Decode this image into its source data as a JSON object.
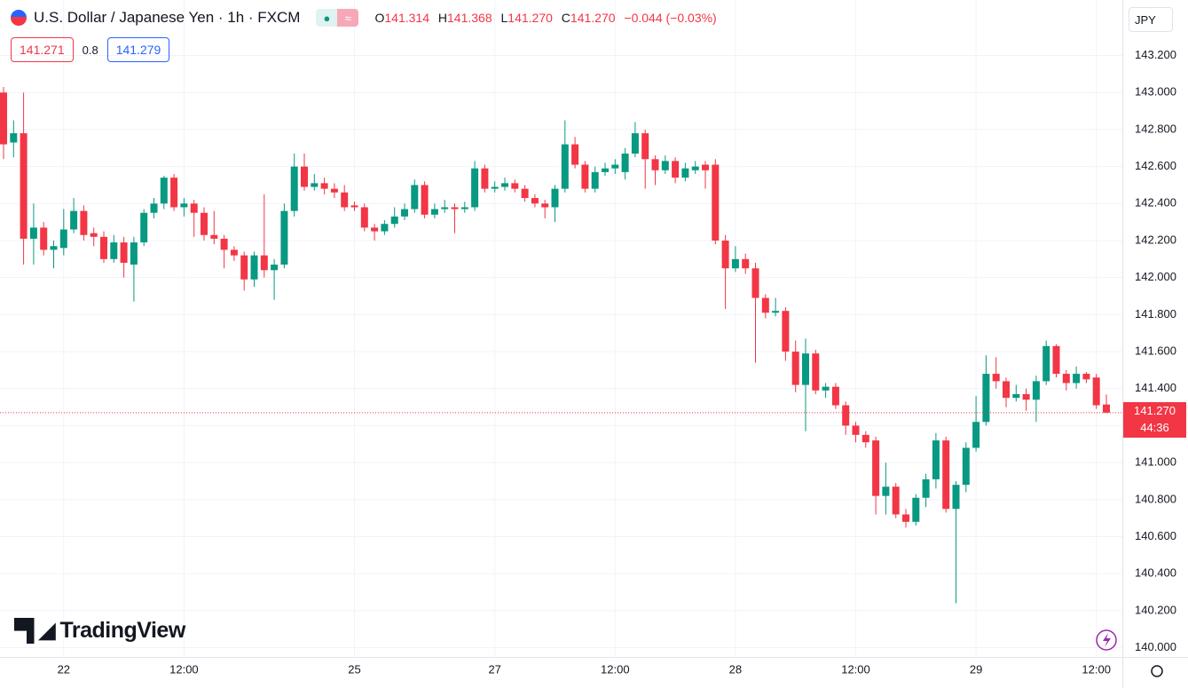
{
  "chart_data": {
    "type": "candlestick",
    "title": "U.S. Dollar / Japanese Yen · 1h · FXCM",
    "quote_labels": [
      "O",
      "H",
      "L",
      "C"
    ],
    "quote": [
      "141.314",
      "141.368",
      "141.270",
      "141.270"
    ],
    "change": "−0.044 (−0.03%)",
    "bid": "141.271",
    "spread": "0.8",
    "ask": "141.279",
    "currency": "JPY",
    "logo": "TradingView",
    "last_price_label": "141.270",
    "countdown": "44:36",
    "up_color": "#089981",
    "down_color": "#f23645",
    "grid": true,
    "ylim": [
      139.95,
      143.5
    ],
    "yticks": [
      {
        "value": 140.0,
        "label": "140.000"
      },
      {
        "value": 140.2,
        "label": "140.200"
      },
      {
        "value": 140.4,
        "label": "140.400"
      },
      {
        "value": 140.6,
        "label": "140.600"
      },
      {
        "value": 140.8,
        "label": "140.800"
      },
      {
        "value": 141.0,
        "label": "141.000"
      },
      {
        "value": 141.2,
        "label": "141.200"
      },
      {
        "value": 141.4,
        "label": "141.400"
      },
      {
        "value": 141.6,
        "label": "141.600"
      },
      {
        "value": 141.8,
        "label": "141.800"
      },
      {
        "value": 142.0,
        "label": "142.000"
      },
      {
        "value": 142.2,
        "label": "142.200"
      },
      {
        "value": 142.4,
        "label": "142.400"
      },
      {
        "value": 142.6,
        "label": "142.600"
      },
      {
        "value": 142.8,
        "label": "142.800"
      },
      {
        "value": 143.0,
        "label": "143.000"
      },
      {
        "value": 143.2,
        "label": "143.200"
      }
    ],
    "categories": [
      null,
      null,
      null,
      null,
      null,
      null,
      "22",
      null,
      null,
      null,
      null,
      null,
      null,
      null,
      null,
      null,
      null,
      null,
      "12:00",
      null,
      null,
      null,
      null,
      null,
      null,
      null,
      null,
      null,
      null,
      null,
      null,
      null,
      null,
      null,
      null,
      "25",
      null,
      null,
      null,
      null,
      null,
      null,
      null,
      null,
      null,
      null,
      null,
      null,
      null,
      "27",
      null,
      null,
      null,
      null,
      null,
      null,
      null,
      null,
      null,
      null,
      null,
      "12:00",
      null,
      null,
      null,
      null,
      null,
      null,
      null,
      null,
      null,
      null,
      null,
      "28",
      null,
      null,
      null,
      null,
      null,
      null,
      null,
      null,
      null,
      null,
      null,
      "12:00",
      null,
      null,
      null,
      null,
      null,
      null,
      null,
      null,
      null,
      null,
      null,
      "29",
      null,
      null,
      null,
      null,
      null,
      null,
      null,
      null,
      null,
      null,
      null,
      "12:00",
      null
    ],
    "open": [
      143.0,
      142.73,
      142.78,
      142.21,
      142.27,
      142.15,
      142.16,
      142.26,
      142.36,
      142.24,
      142.22,
      142.1,
      142.19,
      142.07,
      142.19,
      142.35,
      142.4,
      142.54,
      142.38,
      142.4,
      142.35,
      142.23,
      142.21,
      142.15,
      142.12,
      141.99,
      142.12,
      142.04,
      142.07,
      142.36,
      142.6,
      142.49,
      142.51,
      142.48,
      142.46,
      142.39,
      142.38,
      142.27,
      142.25,
      142.29,
      142.33,
      142.37,
      142.5,
      142.34,
      142.37,
      142.38,
      142.37,
      142.38,
      142.59,
      142.48,
      142.49,
      142.51,
      142.48,
      142.43,
      142.4,
      142.38,
      142.48,
      142.72,
      142.61,
      142.48,
      142.57,
      142.59,
      142.57,
      142.67,
      142.78,
      142.64,
      142.58,
      142.63,
      142.54,
      142.58,
      142.61,
      142.61,
      142.2,
      142.05,
      142.1,
      142.05,
      141.89,
      141.81,
      141.82,
      141.6,
      141.42,
      141.59,
      141.39,
      141.41,
      141.31,
      141.2,
      141.15,
      141.12,
      140.82,
      140.87,
      140.72,
      140.68,
      140.81,
      140.91,
      141.12,
      140.75,
      140.88,
      141.08,
      141.22,
      141.48,
      141.44,
      141.35,
      141.37,
      141.34,
      141.44,
      141.63,
      141.48,
      141.43,
      141.48,
      141.46,
      141.314
    ],
    "high": [
      143.03,
      142.85,
      143.0,
      142.4,
      142.3,
      142.2,
      142.37,
      142.43,
      142.39,
      142.27,
      142.25,
      142.23,
      142.22,
      142.22,
      142.37,
      142.43,
      142.55,
      142.56,
      142.43,
      142.42,
      142.38,
      142.36,
      142.23,
      142.17,
      142.14,
      142.14,
      142.45,
      142.1,
      142.4,
      142.67,
      142.67,
      142.56,
      142.54,
      142.51,
      142.5,
      142.41,
      142.4,
      142.29,
      142.31,
      142.38,
      142.4,
      142.53,
      142.52,
      142.4,
      142.42,
      142.4,
      142.41,
      142.63,
      142.61,
      142.52,
      142.54,
      142.53,
      142.5,
      142.45,
      142.42,
      142.5,
      142.85,
      142.76,
      142.63,
      142.6,
      142.62,
      142.64,
      142.7,
      142.84,
      142.8,
      142.66,
      142.66,
      142.65,
      142.62,
      142.63,
      142.63,
      142.64,
      142.23,
      142.17,
      142.13,
      142.08,
      141.91,
      141.89,
      141.84,
      141.66,
      141.67,
      141.61,
      141.43,
      141.43,
      141.33,
      141.22,
      141.17,
      141.14,
      141.0,
      140.89,
      140.75,
      140.83,
      140.94,
      141.16,
      141.14,
      140.9,
      141.11,
      141.36,
      141.58,
      141.57,
      141.46,
      141.42,
      141.4,
      141.47,
      141.66,
      141.64,
      141.5,
      141.52,
      141.49,
      141.48,
      141.368
    ],
    "low": [
      142.64,
      142.65,
      142.07,
      142.07,
      142.12,
      142.05,
      142.12,
      142.24,
      142.2,
      142.17,
      142.08,
      142.08,
      142.0,
      141.87,
      142.17,
      142.32,
      142.37,
      142.36,
      142.33,
      142.22,
      142.2,
      142.18,
      142.05,
      142.09,
      141.93,
      141.95,
      142.0,
      141.88,
      142.05,
      142.33,
      142.47,
      142.47,
      142.45,
      142.43,
      142.36,
      142.36,
      142.25,
      142.2,
      142.23,
      142.27,
      142.31,
      142.35,
      142.32,
      142.32,
      142.35,
      142.24,
      142.35,
      142.36,
      142.46,
      142.46,
      142.47,
      142.46,
      142.41,
      142.38,
      142.32,
      142.3,
      142.46,
      142.59,
      142.46,
      142.46,
      142.55,
      142.56,
      142.53,
      142.65,
      142.48,
      142.5,
      142.56,
      142.51,
      142.52,
      142.56,
      142.48,
      142.18,
      141.83,
      142.03,
      142.02,
      141.54,
      141.78,
      141.79,
      141.55,
      141.38,
      141.17,
      141.37,
      141.35,
      141.29,
      141.15,
      141.11,
      141.08,
      140.72,
      140.72,
      140.7,
      140.65,
      140.66,
      140.76,
      140.86,
      140.73,
      140.24,
      140.84,
      141.06,
      141.2,
      141.4,
      141.3,
      141.33,
      141.28,
      141.22,
      141.42,
      141.46,
      141.39,
      141.4,
      141.43,
      141.29,
      141.27
    ],
    "close": [
      142.72,
      142.78,
      142.21,
      142.27,
      142.15,
      142.17,
      142.26,
      142.36,
      142.23,
      142.22,
      142.1,
      142.19,
      142.08,
      142.19,
      142.35,
      142.4,
      142.54,
      142.38,
      142.4,
      142.35,
      142.23,
      142.21,
      142.15,
      142.12,
      141.99,
      142.12,
      142.04,
      142.07,
      142.36,
      142.6,
      142.49,
      142.51,
      142.48,
      142.46,
      142.38,
      142.38,
      142.27,
      142.25,
      142.29,
      142.33,
      142.37,
      142.5,
      142.34,
      142.37,
      142.38,
      142.37,
      142.38,
      142.59,
      142.48,
      142.49,
      142.51,
      142.48,
      142.43,
      142.4,
      142.38,
      142.48,
      142.72,
      142.61,
      142.48,
      142.57,
      142.59,
      142.61,
      142.67,
      142.78,
      142.64,
      142.58,
      142.63,
      142.54,
      142.59,
      142.6,
      142.58,
      142.2,
      142.05,
      142.1,
      142.05,
      141.89,
      141.81,
      141.82,
      141.6,
      141.42,
      141.59,
      141.39,
      141.41,
      141.31,
      141.2,
      141.15,
      141.11,
      140.82,
      140.87,
      140.72,
      140.68,
      140.81,
      140.91,
      141.12,
      140.75,
      140.88,
      141.08,
      141.22,
      141.48,
      141.44,
      141.35,
      141.37,
      141.34,
      141.44,
      141.63,
      141.48,
      141.43,
      141.48,
      141.45,
      141.31,
      141.27
    ]
  }
}
